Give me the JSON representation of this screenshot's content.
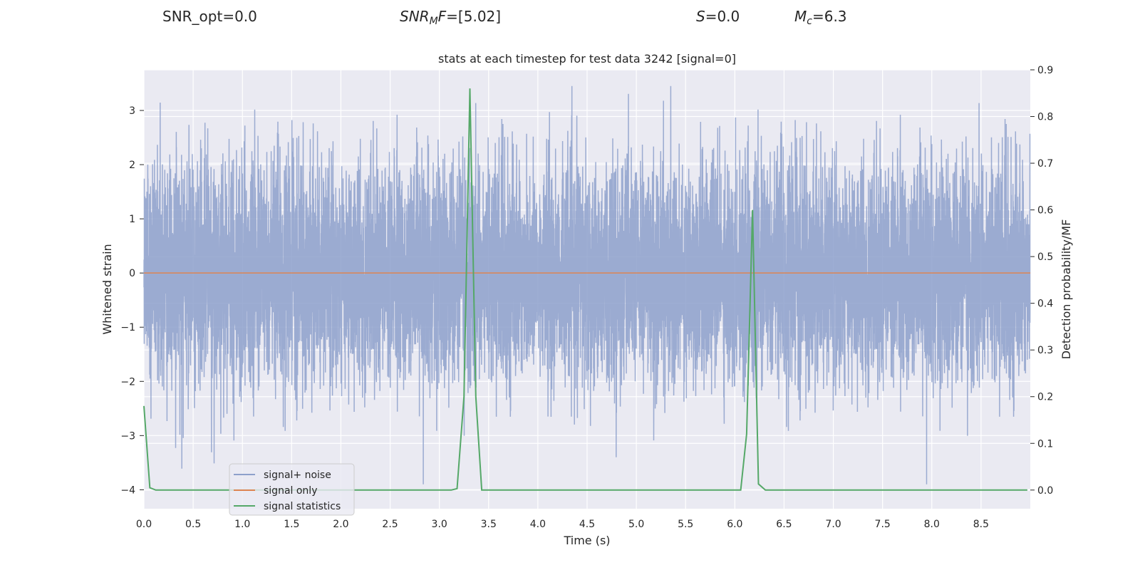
{
  "header": {
    "snr_opt": "SNR_opt=0.0",
    "snr_mf_name": "SNR",
    "snr_mf_sub": "M",
    "snr_mf_suffix": "F",
    "snr_mf_value": "=[5.02]",
    "s_name": "S",
    "s_value": "=0.0",
    "mc_name": "M",
    "mc_sub": "c",
    "mc_value": "=6.3"
  },
  "chart_data": {
    "type": "line",
    "title": "stats at each timestep for test data 3242 [signal=0]",
    "xlabel": "Time (s)",
    "ylabel": "Whitened strain",
    "y2label": "Detection probability/MF",
    "xlim": [
      0,
      9.0
    ],
    "ylim": [
      -4.35,
      3.75
    ],
    "y2lim": [
      -0.04,
      0.9
    ],
    "xticks": [
      "0.0",
      "0.5",
      "1.0",
      "1.5",
      "2.0",
      "2.5",
      "3.0",
      "3.5",
      "4.0",
      "4.5",
      "5.0",
      "5.5",
      "6.0",
      "6.5",
      "7.0",
      "7.5",
      "8.0",
      "8.5"
    ],
    "yticks": [
      "3",
      "2",
      "1",
      "0",
      "−1",
      "−2",
      "−3",
      "−4"
    ],
    "y2ticks": [
      "0.9",
      "0.8",
      "0.7",
      "0.6",
      "0.5",
      "0.4",
      "0.3",
      "0.2",
      "0.1",
      "0.0"
    ],
    "grid": true,
    "legend_position": "lower-left",
    "series": [
      {
        "name": "signal+ noise",
        "color": "#8da0cb",
        "kind": "noise",
        "samples_per_second": 1024,
        "sigma": 1.0,
        "x_range": [
          0,
          9.0
        ]
      },
      {
        "name": "signal only",
        "color": "#dd8452",
        "x": [
          0,
          9.0
        ],
        "values": [
          0,
          0
        ]
      },
      {
        "name": "signal statistics",
        "color": "#55a868",
        "axis": "right",
        "x": [
          0.0,
          0.06,
          0.12,
          3.12,
          3.18,
          3.25,
          3.31,
          3.37,
          3.43,
          6.06,
          6.12,
          6.18,
          6.24,
          6.31,
          8.97
        ],
        "values": [
          0.18,
          0.005,
          0.0,
          0.0,
          0.003,
          0.2,
          0.86,
          0.2,
          0.0,
          0.0,
          0.12,
          0.6,
          0.013,
          0.0,
          0.0
        ]
      }
    ]
  }
}
